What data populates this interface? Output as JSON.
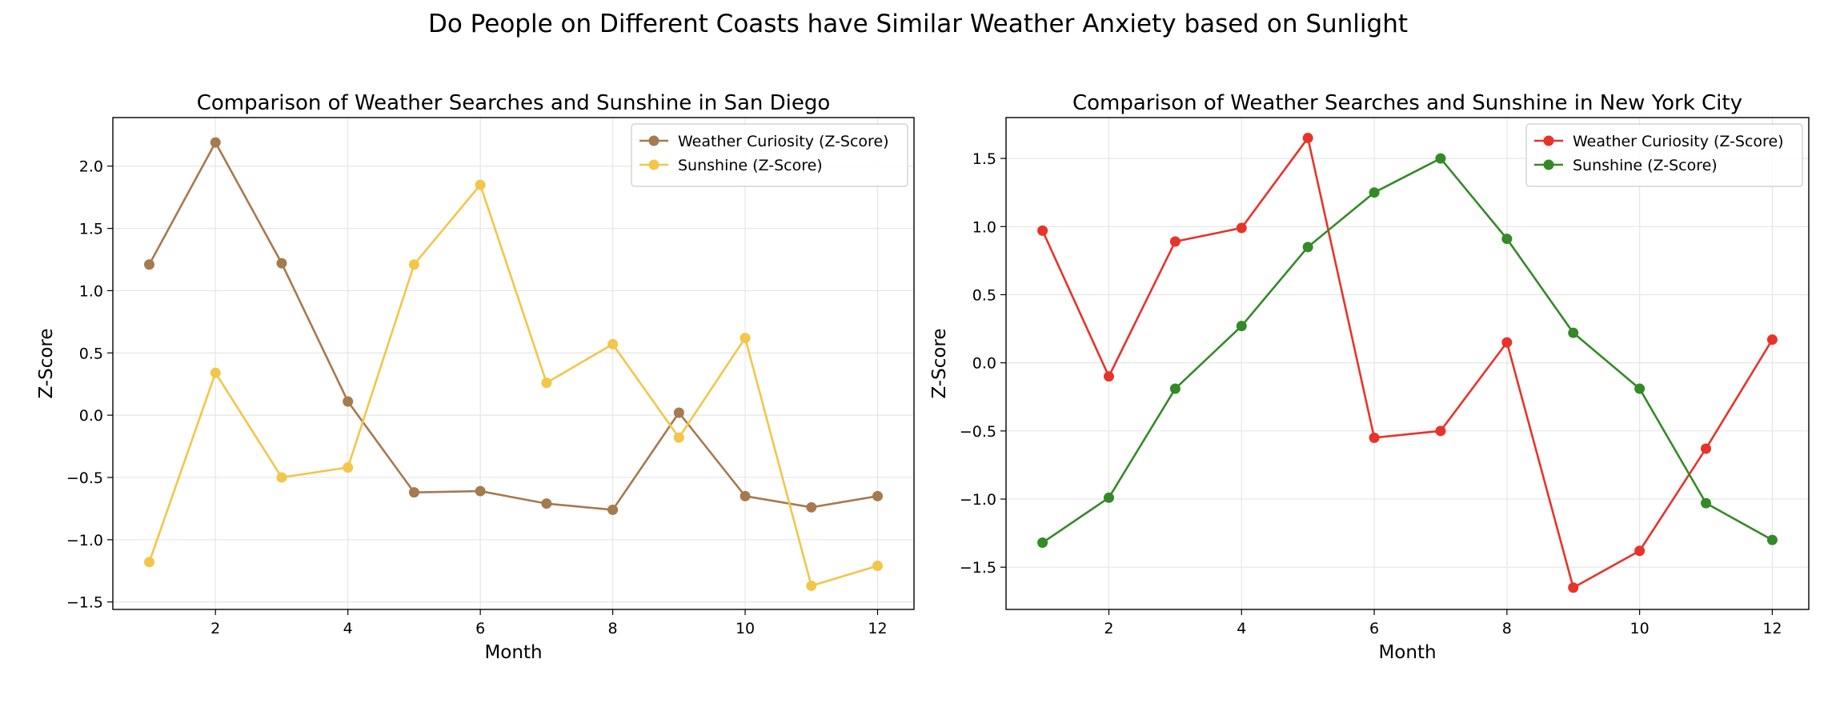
{
  "suptitle": "Do People on Different Coasts have Similar Weather Anxiety based on Sunlight",
  "chart_data": [
    {
      "type": "line",
      "title": "Comparison of Weather Searches and Sunshine in San Diego",
      "xlabel": "Month",
      "ylabel": "Z-Score",
      "x": [
        1,
        2,
        3,
        4,
        5,
        6,
        7,
        8,
        9,
        10,
        11,
        12
      ],
      "xlim": [
        0.45,
        12.55
      ],
      "ylim": [
        -1.56,
        2.39
      ],
      "xticks": [
        2,
        4,
        6,
        8,
        10,
        12
      ],
      "yticks": [
        -1.5,
        -1.0,
        -0.5,
        0.0,
        0.5,
        1.0,
        1.5,
        2.0
      ],
      "ytick_labels": [
        "−1.5",
        "−1.0",
        "−0.5",
        "0.0",
        "0.5",
        "1.0",
        "1.5",
        "2.0"
      ],
      "grid": true,
      "legend_position": "upper right",
      "series": [
        {
          "name": "Weather Curiosity (Z-Score)",
          "color": "#a57a4f",
          "values": [
            1.21,
            2.19,
            1.22,
            0.11,
            -0.62,
            -0.61,
            -0.71,
            -0.76,
            0.02,
            -0.65,
            -0.74,
            -0.65
          ]
        },
        {
          "name": "Sunshine (Z-Score)",
          "color": "#f2c649",
          "values": [
            -1.18,
            0.34,
            -0.5,
            -0.42,
            1.21,
            1.85,
            0.26,
            0.57,
            -0.18,
            0.62,
            -1.37,
            -1.21
          ]
        }
      ]
    },
    {
      "type": "line",
      "title": "Comparison of Weather Searches and Sunshine in New York City",
      "xlabel": "Month",
      "ylabel": "Z-Score",
      "x": [
        1,
        2,
        3,
        4,
        5,
        6,
        7,
        8,
        9,
        10,
        11,
        12
      ],
      "xlim": [
        0.45,
        12.55
      ],
      "ylim": [
        -1.81,
        1.8
      ],
      "xticks": [
        2,
        4,
        6,
        8,
        10,
        12
      ],
      "yticks": [
        -1.5,
        -1.0,
        -0.5,
        0.0,
        0.5,
        1.0,
        1.5
      ],
      "ytick_labels": [
        "−1.5",
        "−1.0",
        "−0.5",
        "0.0",
        "0.5",
        "1.0",
        "1.5"
      ],
      "grid": true,
      "legend_position": "upper right",
      "series": [
        {
          "name": "Weather Curiosity (Z-Score)",
          "color": "#e8332a",
          "values": [
            0.97,
            -0.1,
            0.89,
            0.99,
            1.65,
            -0.55,
            -0.5,
            0.15,
            -1.65,
            -1.38,
            -0.63,
            0.17
          ]
        },
        {
          "name": "Sunshine (Z-Score)",
          "color": "#348a27",
          "values": [
            -1.32,
            -0.99,
            -0.19,
            0.27,
            0.85,
            1.25,
            1.5,
            0.91,
            0.22,
            -0.19,
            -1.03,
            -1.3
          ]
        }
      ]
    }
  ]
}
